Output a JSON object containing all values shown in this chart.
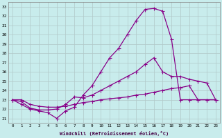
{
  "xlabel": "Windchill (Refroidissement éolien,°C)",
  "bg_color": "#c8ecec",
  "grid_color": "#b0c8c8",
  "line_color": "#880088",
  "x_ticks": [
    0,
    1,
    2,
    3,
    4,
    5,
    6,
    7,
    8,
    9,
    10,
    11,
    12,
    13,
    14,
    15,
    16,
    17,
    18,
    19,
    20,
    21,
    22,
    23
  ],
  "y_ticks": [
    21,
    22,
    23,
    24,
    25,
    26,
    27,
    28,
    29,
    30,
    31,
    32,
    33
  ],
  "xlim": [
    -0.5,
    23.5
  ],
  "ylim": [
    20.5,
    33.5
  ],
  "line1_x": [
    0,
    1,
    2,
    3,
    4,
    5,
    6,
    7,
    8,
    9,
    10,
    11,
    12,
    13,
    14,
    15,
    16,
    17,
    18,
    19,
    20,
    21,
    22,
    23
  ],
  "line1_y": [
    23.0,
    22.5,
    22.0,
    21.8,
    21.6,
    21.0,
    21.8,
    22.2,
    23.5,
    24.5,
    26.0,
    27.5,
    28.5,
    30.0,
    31.5,
    32.7,
    32.8,
    32.5,
    29.5,
    23.0,
    23.0,
    23.0,
    23.0,
    23.0
  ],
  "line2_x": [
    0,
    1,
    2,
    3,
    4,
    5,
    6,
    7,
    8,
    9,
    10,
    11,
    12,
    13,
    14,
    15,
    16,
    17,
    18,
    19,
    20,
    21,
    22,
    23
  ],
  "line2_y": [
    23.0,
    22.8,
    22.1,
    21.9,
    21.9,
    22.0,
    22.5,
    23.3,
    23.2,
    23.5,
    24.0,
    24.5,
    25.0,
    25.5,
    26.0,
    26.8,
    27.5,
    26.0,
    25.5,
    25.5,
    25.2,
    25.0,
    24.8,
    23.0
  ],
  "line3_x": [
    0,
    1,
    2,
    3,
    4,
    5,
    6,
    7,
    8,
    9,
    10,
    11,
    12,
    13,
    14,
    15,
    16,
    17,
    18,
    19,
    20,
    21,
    22,
    23
  ],
  "line3_y": [
    23.0,
    23.0,
    22.5,
    22.3,
    22.2,
    22.2,
    22.3,
    22.5,
    22.7,
    22.8,
    23.0,
    23.1,
    23.2,
    23.3,
    23.5,
    23.6,
    23.8,
    24.0,
    24.2,
    24.3,
    24.5,
    23.0,
    23.0,
    23.0
  ]
}
